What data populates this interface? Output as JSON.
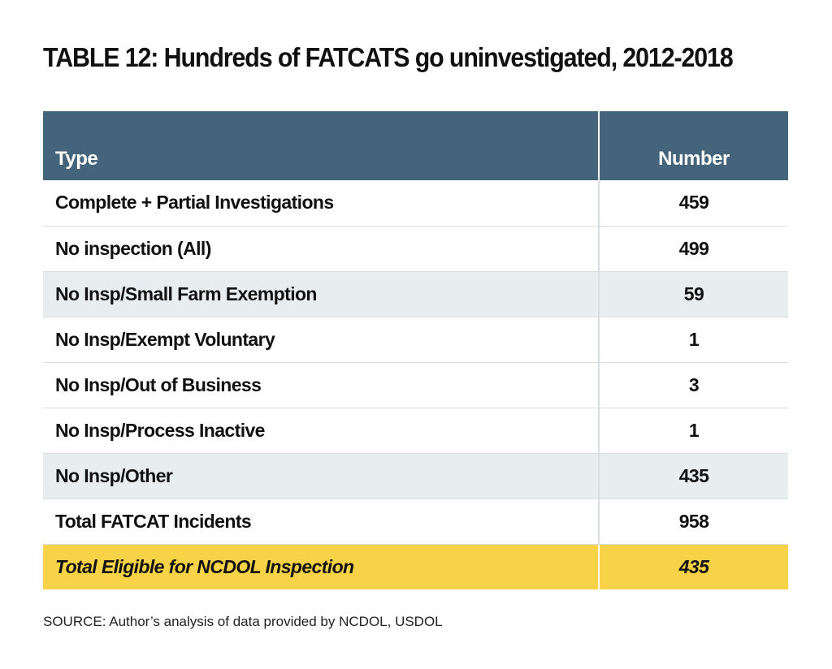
{
  "title": "TABLE 12:  Hundreds of FATCATS go uninvestigated, 2012-2018",
  "columns": {
    "type": "Type",
    "number": "Number"
  },
  "rows": [
    {
      "type": "Complete + Partial Investigations",
      "number": "459"
    },
    {
      "type": "No inspection (All)",
      "number": "499"
    },
    {
      "type": "No Insp/Small Farm Exemption",
      "number": "59"
    },
    {
      "type": "No Insp/Exempt Voluntary",
      "number": "1"
    },
    {
      "type": "No Insp/Out of Business",
      "number": "3"
    },
    {
      "type": "No Insp/Process Inactive",
      "number": "1"
    },
    {
      "type": "No Insp/Other",
      "number": "435"
    },
    {
      "type": "Total FATCAT Incidents",
      "number": "958"
    },
    {
      "type": "Total Eligible for NCDOL Inspection",
      "number": "435"
    }
  ],
  "source": "SOURCE: Author’s analysis of data provided by NCDOL, USDOL",
  "colors": {
    "header_bg": "#44647b",
    "shaded_row_bg": "#e8edf0",
    "highlight_row_bg": "#f8d348"
  }
}
